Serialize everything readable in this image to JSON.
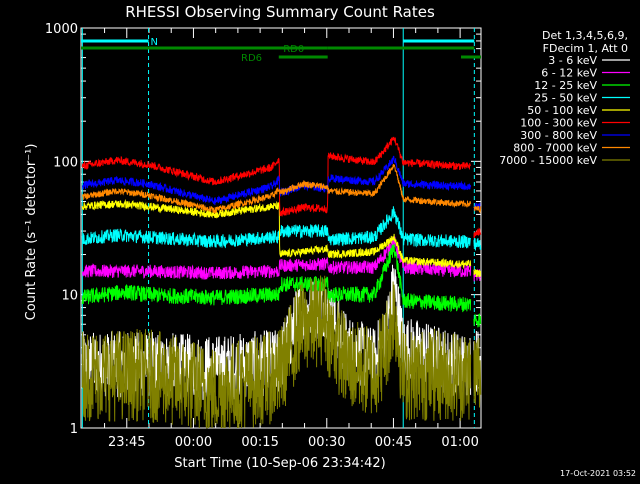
{
  "chart_data": {
    "type": "line",
    "title": "RHESSI Observing Summary Count Rates",
    "xlabel": "Start Time (10-Sep-06 23:34:42)",
    "ylabel": "Count Rate (s⁻¹ detector⁻¹)",
    "y_scale": "log",
    "ylim": [
      1,
      1000
    ],
    "xlim_minutes_from_start": [
      0,
      90
    ],
    "x_ticks": [
      {
        "t": 10.3,
        "label": "23:45"
      },
      {
        "t": 25.3,
        "label": "00:00"
      },
      {
        "t": 40.3,
        "label": "00:15"
      },
      {
        "t": 55.3,
        "label": "00:30"
      },
      {
        "t": 70.3,
        "label": "00:45"
      },
      {
        "t": 85.3,
        "label": "01:00"
      }
    ],
    "y_ticks": [
      {
        "v": 1,
        "label": "1"
      },
      {
        "v": 10,
        "label": "10"
      },
      {
        "v": 100,
        "label": "100"
      },
      {
        "v": 1000,
        "label": "1000"
      }
    ],
    "legend_header": [
      "Det 1,3,4,5,6,9,",
      "FDecim 1, Att 0"
    ],
    "legend_placement": "right",
    "flags": [
      {
        "label": "N",
        "color": "#00ffff",
        "segments": [
          [
            0,
            15.2
          ],
          [
            72.5,
            88.5
          ]
        ]
      },
      {
        "label": "RD0",
        "color": "#008800",
        "segments": [
          [
            0,
            55.5
          ],
          [
            55.5,
            88.5
          ]
        ]
      },
      {
        "label": "RD6",
        "color": "#008800",
        "segments": [
          [
            44.5,
            55.5
          ],
          [
            85.5,
            90
          ]
        ]
      }
    ],
    "vlines": [
      {
        "t": 0.3,
        "color": "#00ffff",
        "style": "solid"
      },
      {
        "t": 15.2,
        "color": "#00ffff",
        "style": "dashed"
      },
      {
        "t": 72.5,
        "color": "#00ffff",
        "style": "solid"
      },
      {
        "t": 88.5,
        "color": "#00ffff",
        "style": "dashed"
      }
    ],
    "flare_peak_t": 70.5,
    "series": [
      {
        "name": "3 - 6 keV",
        "color": "#ffffff",
        "segments": [
          [
            [
              0.3,
              3.0
            ],
            [
              15,
              3.0
            ],
            [
              30,
              2.8
            ],
            [
              43,
              3.1
            ],
            [
              44.6,
              3.1
            ],
            [
              49,
              7
            ],
            [
              55,
              8.5
            ],
            [
              55.6,
              7.5
            ],
            [
              60,
              4
            ],
            [
              66,
              3.2
            ],
            [
              68.5,
              5
            ],
            [
              70.5,
              12
            ],
            [
              72.5,
              4
            ],
            [
              85,
              3.0
            ],
            [
              87.7,
              3.0
            ]
          ],
          [
            [
              88.4,
              3.2
            ],
            [
              90,
              3.2
            ]
          ]
        ],
        "noise": 0.25
      },
      {
        "name": "6 - 12 keV",
        "color": "#ff00ff",
        "segments": [
          [
            [
              0.3,
              15
            ],
            [
              15,
              15
            ],
            [
              30,
              14.5
            ],
            [
              43,
              15
            ],
            [
              44.6,
              15
            ],
            [
              44.7,
              16.5
            ],
            [
              55.5,
              17
            ],
            [
              55.6,
              16
            ],
            [
              66,
              16
            ],
            [
              70.5,
              25
            ],
            [
              72.5,
              16
            ],
            [
              85,
              15
            ],
            [
              87.7,
              15
            ]
          ],
          [
            [
              88.4,
              14
            ],
            [
              90,
              14
            ]
          ]
        ],
        "noise": 0.05
      },
      {
        "name": "12 - 25 keV",
        "color": "#00ff00",
        "segments": [
          [
            [
              0.3,
              9.5
            ],
            [
              10,
              10.5
            ],
            [
              15,
              10
            ],
            [
              30,
              9.5
            ],
            [
              43,
              10
            ],
            [
              44.6,
              10
            ],
            [
              44.7,
              12
            ],
            [
              55.5,
              12
            ],
            [
              55.6,
              10
            ],
            [
              66,
              10
            ],
            [
              70.5,
              23
            ],
            [
              72.5,
              9
            ],
            [
              85,
              8.5
            ],
            [
              87.7,
              8.5
            ]
          ],
          [
            [
              88.4,
              6.5
            ],
            [
              90,
              6.5
            ]
          ]
        ],
        "noise": 0.06
      },
      {
        "name": "25 - 50 keV",
        "color": "#00ffff",
        "segments": [
          [
            [
              0.3,
              26
            ],
            [
              8,
              28
            ],
            [
              15,
              27
            ],
            [
              30,
              25
            ],
            [
              43,
              27
            ],
            [
              44.6,
              27
            ],
            [
              44.7,
              30
            ],
            [
              55.5,
              30
            ],
            [
              55.6,
              26
            ],
            [
              66,
              27
            ],
            [
              70.5,
              42
            ],
            [
              72.5,
              26
            ],
            [
              85,
              25
            ],
            [
              87.7,
              25
            ]
          ],
          [
            [
              88.4,
              24
            ],
            [
              90,
              24
            ]
          ]
        ],
        "noise": 0.05
      },
      {
        "name": "50 - 100 keV",
        "color": "#ffff00",
        "segments": [
          [
            [
              0.3,
              46
            ],
            [
              8,
              48
            ],
            [
              15,
              46
            ],
            [
              30,
              40
            ],
            [
              43,
              46
            ],
            [
              44.6,
              46
            ],
            [
              44.7,
              20
            ],
            [
              55.5,
              22
            ],
            [
              55.6,
              20
            ],
            [
              66,
              21
            ],
            [
              70.5,
              27
            ],
            [
              72.5,
              18
            ],
            [
              85,
              17
            ],
            [
              87.7,
              17
            ]
          ],
          [
            [
              88.4,
              14.5
            ],
            [
              90,
              14.5
            ]
          ]
        ],
        "noise": 0.03
      },
      {
        "name": "100 - 300 keV",
        "color": "#ff0000",
        "segments": [
          [
            [
              0.3,
              92
            ],
            [
              8,
              102
            ],
            [
              15,
              95
            ],
            [
              30,
              70
            ],
            [
              43,
              90
            ],
            [
              44.6,
              105
            ],
            [
              44.7,
              41
            ],
            [
              50,
              45
            ],
            [
              55.5,
              44
            ],
            [
              55.6,
              110
            ],
            [
              66,
              98
            ],
            [
              70.5,
              150
            ],
            [
              72.5,
              98
            ],
            [
              85,
              92
            ],
            [
              87.7,
              92
            ]
          ],
          [
            [
              88.4,
              28
            ],
            [
              90,
              30
            ]
          ]
        ],
        "noise": 0.03
      },
      {
        "name": "300 - 800 keV",
        "color": "#0000ff",
        "segments": [
          [
            [
              0.3,
              66
            ],
            [
              8,
              72
            ],
            [
              15,
              68
            ],
            [
              30,
              50
            ],
            [
              43,
              65
            ],
            [
              44.6,
              73
            ],
            [
              44.7,
              58
            ],
            [
              50,
              66
            ],
            [
              55.5,
              62
            ],
            [
              55.6,
              75
            ],
            [
              66,
              70
            ],
            [
              70.5,
              105
            ],
            [
              72.5,
              68
            ],
            [
              85,
              65
            ],
            [
              87.7,
              65
            ]
          ],
          [
            [
              88.4,
              45
            ],
            [
              90,
              46
            ]
          ]
        ],
        "noise": 0.03
      },
      {
        "name": "800 - 7000 keV",
        "color": "#ff8800",
        "segments": [
          [
            [
              0.3,
              54
            ],
            [
              8,
              60
            ],
            [
              15,
              56
            ],
            [
              30,
              43
            ],
            [
              43,
              55
            ],
            [
              44.6,
              62
            ],
            [
              44.7,
              58
            ],
            [
              50,
              68
            ],
            [
              55.5,
              64
            ],
            [
              55.6,
              60
            ],
            [
              66,
              57
            ],
            [
              70.5,
              95
            ],
            [
              72.5,
              52
            ],
            [
              85,
              48
            ],
            [
              87.7,
              48
            ]
          ],
          [
            [
              88.4,
              44
            ],
            [
              90,
              44
            ]
          ]
        ],
        "noise": 0.025
      },
      {
        "name": "7000 - 15000 keV",
        "color": "#808000",
        "segments": [
          [
            [
              0.3,
              2.5
            ],
            [
              15,
              2.5
            ],
            [
              30,
              1.9
            ],
            [
              43,
              2.4
            ],
            [
              44.6,
              2.5
            ],
            [
              49,
              5.5
            ],
            [
              55,
              6.8
            ],
            [
              55.6,
              5.5
            ],
            [
              60,
              3.0
            ],
            [
              66,
              2.6
            ],
            [
              68.5,
              4
            ],
            [
              70.5,
              8
            ],
            [
              72.5,
              2.5
            ],
            [
              85,
              2.5
            ],
            [
              87.7,
              2.5
            ]
          ],
          [
            [
              88.4,
              2.6
            ],
            [
              90,
              2.6
            ]
          ]
        ],
        "noise": 0.35
      }
    ]
  },
  "timestamp": "17-Oct-2021 03:52"
}
